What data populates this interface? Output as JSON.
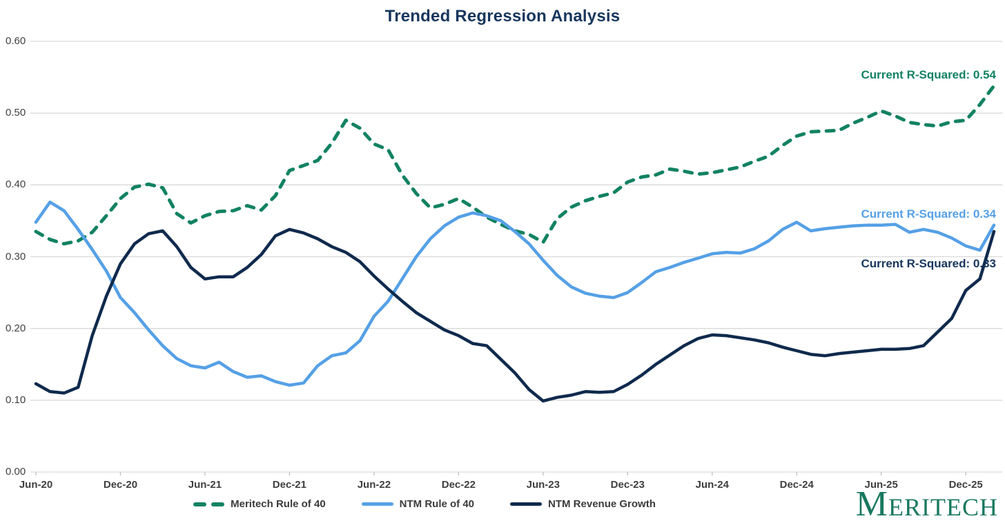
{
  "title": {
    "text": "Trended Regression Analysis",
    "color": "#17365D"
  },
  "annotations": [
    {
      "text": "Current R-Squared: 0.54",
      "series": "Meritech Rule of 40",
      "color": "#128262"
    },
    {
      "text": "Current R-Squared: 0.34",
      "series": "NTM Rule of 40",
      "color": "#55A0E6"
    },
    {
      "text": "Current R-Squared: 0.33",
      "series": "NTM Revenue Growth",
      "color": "#17365D"
    }
  ],
  "logo": {
    "text": "Meritech",
    "color": "#18795F"
  },
  "colors": {
    "grid": "#D9D9D9",
    "tick_stub": "#BFBFBF",
    "axis_text": "#404040",
    "legend_text": "#3B3B3B",
    "background": "#FFFFFF"
  },
  "chart_data": {
    "type": "line",
    "title": "Trended Regression Analysis",
    "x_unit": "monthly points from Jun-2020",
    "x_tick_labels": [
      "Jun-20",
      "Dec-20",
      "Jun-21",
      "Dec-21",
      "Jun-22",
      "Dec-22",
      "Jun-23",
      "Dec-23",
      "Jun-24",
      "Dec-24",
      "Jun-25",
      "Dec-25"
    ],
    "x_tick_month_indices": [
      0,
      6,
      12,
      18,
      24,
      30,
      36,
      42,
      48,
      54,
      60,
      66
    ],
    "y_tick_labels": [
      "0.00",
      "0.10",
      "0.20",
      "0.30",
      "0.40",
      "0.50",
      "0.60"
    ],
    "ylim": [
      0.0,
      0.6
    ],
    "grid": "horizontal",
    "legend_position": "bottom-center",
    "series": [
      {
        "name": "Meritech Rule of 40",
        "color": "#128262",
        "line_style": "dashed",
        "stroke_width": 5,
        "current_r_squared": 0.54,
        "values": [
          0.335,
          0.324,
          0.318,
          0.322,
          0.334,
          0.357,
          0.381,
          0.397,
          0.401,
          0.396,
          0.36,
          0.347,
          0.357,
          0.363,
          0.364,
          0.371,
          0.365,
          0.385,
          0.42,
          0.427,
          0.434,
          0.458,
          0.49,
          0.479,
          0.457,
          0.449,
          0.414,
          0.388,
          0.368,
          0.373,
          0.381,
          0.369,
          0.355,
          0.345,
          0.336,
          0.331,
          0.32,
          0.353,
          0.369,
          0.378,
          0.384,
          0.389,
          0.404,
          0.411,
          0.414,
          0.422,
          0.419,
          0.415,
          0.417,
          0.421,
          0.425,
          0.433,
          0.44,
          0.455,
          0.468,
          0.474,
          0.475,
          0.476,
          0.486,
          0.494,
          0.503,
          0.496,
          0.487,
          0.484,
          0.482,
          0.488,
          0.49,
          0.512,
          0.538
        ]
      },
      {
        "name": "NTM Rule of 40",
        "color": "#55A0E6",
        "line_style": "solid",
        "stroke_width": 4.5,
        "current_r_squared": 0.34,
        "values": [
          0.348,
          0.376,
          0.364,
          0.338,
          0.31,
          0.28,
          0.243,
          0.222,
          0.198,
          0.176,
          0.158,
          0.148,
          0.145,
          0.153,
          0.14,
          0.132,
          0.134,
          0.126,
          0.121,
          0.124,
          0.148,
          0.162,
          0.166,
          0.183,
          0.217,
          0.238,
          0.269,
          0.3,
          0.325,
          0.343,
          0.355,
          0.361,
          0.357,
          0.35,
          0.335,
          0.318,
          0.295,
          0.274,
          0.258,
          0.249,
          0.245,
          0.243,
          0.25,
          0.264,
          0.279,
          0.285,
          0.292,
          0.298,
          0.304,
          0.306,
          0.305,
          0.311,
          0.322,
          0.338,
          0.348,
          0.336,
          0.339,
          0.341,
          0.343,
          0.344,
          0.344,
          0.345,
          0.334,
          0.338,
          0.334,
          0.326,
          0.315,
          0.309,
          0.344
        ]
      },
      {
        "name": "NTM Revenue Growth",
        "color": "#0F2A4D",
        "line_style": "solid",
        "stroke_width": 4.5,
        "current_r_squared": 0.33,
        "values": [
          0.123,
          0.112,
          0.11,
          0.118,
          0.19,
          0.245,
          0.29,
          0.318,
          0.332,
          0.336,
          0.314,
          0.285,
          0.269,
          0.272,
          0.272,
          0.285,
          0.303,
          0.329,
          0.338,
          0.333,
          0.325,
          0.314,
          0.306,
          0.293,
          0.273,
          0.255,
          0.238,
          0.222,
          0.21,
          0.198,
          0.19,
          0.179,
          0.176,
          0.157,
          0.138,
          0.115,
          0.099,
          0.104,
          0.107,
          0.112,
          0.111,
          0.112,
          0.122,
          0.135,
          0.15,
          0.163,
          0.176,
          0.186,
          0.191,
          0.19,
          0.187,
          0.184,
          0.18,
          0.174,
          0.169,
          0.164,
          0.162,
          0.165,
          0.167,
          0.169,
          0.171,
          0.171,
          0.172,
          0.176,
          0.195,
          0.214,
          0.253,
          0.269,
          0.335
        ]
      }
    ]
  }
}
